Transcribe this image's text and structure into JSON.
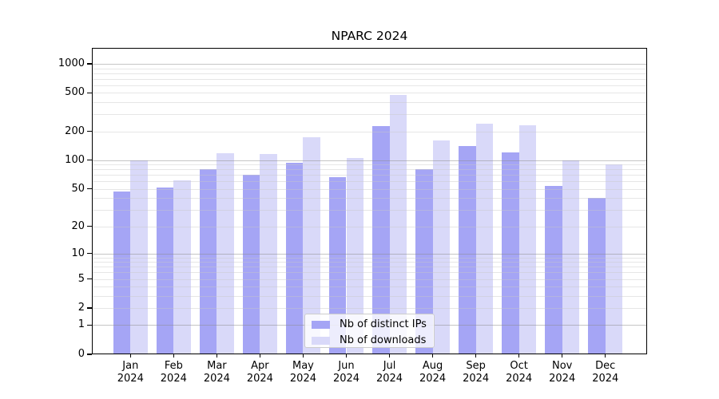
{
  "chart_data": {
    "type": "bar",
    "title": "NPARC 2024",
    "categories": [
      "Jan 2024",
      "Feb 2024",
      "Mar 2024",
      "Apr 2024",
      "May 2024",
      "Jun 2024",
      "Jul 2024",
      "Aug 2024",
      "Sep 2024",
      "Oct 2024",
      "Nov 2024",
      "Dec 2024"
    ],
    "category_months": [
      "Jan",
      "Feb",
      "Mar",
      "Apr",
      "May",
      "Jun",
      "Jul",
      "Aug",
      "Sep",
      "Oct",
      "Nov",
      "Dec"
    ],
    "category_year": "2024",
    "series": [
      {
        "name": "Nb of distinct IPs",
        "color": "#a5a5f5",
        "values": [
          47,
          52,
          80,
          70,
          95,
          67,
          225,
          81,
          140,
          120,
          54,
          40
        ]
      },
      {
        "name": "Nb of downloads",
        "color": "#d9d9f9",
        "values": [
          100,
          62,
          118,
          116,
          175,
          105,
          480,
          160,
          240,
          230,
          100,
          90
        ]
      }
    ],
    "yscale": "log1p",
    "ylim": [
      0,
      1460
    ],
    "yticks": [
      0,
      1,
      2,
      5,
      10,
      20,
      50,
      100,
      200,
      500,
      1000
    ],
    "grid": true,
    "legend": {
      "position": "lower center",
      "labels": [
        "Nb of distinct IPs",
        "Nb of downloads"
      ]
    },
    "colors": {
      "axis": "#000000",
      "grid_major": "#bdbdbd",
      "grid_minor": "#e6e6e6",
      "background": "#ffffff"
    }
  }
}
